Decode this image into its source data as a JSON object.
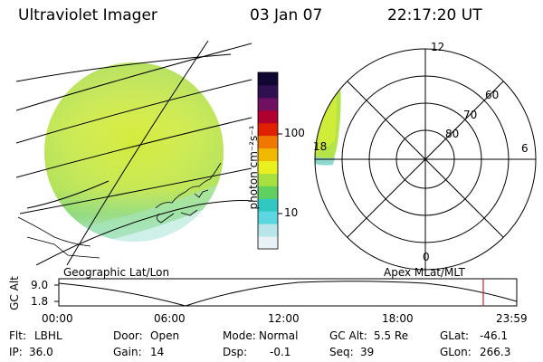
{
  "header": {
    "instrument": "Ultraviolet Imager",
    "date": "03 Jan 07",
    "time": "22:17:20 UT"
  },
  "colorbar": {
    "unit_label": "photon cm⁻²s⁻¹",
    "ticks": [
      "100",
      "10"
    ],
    "colors": [
      "#e8f2f6",
      "#b8e4ea",
      "#5cd6e0",
      "#30c8c0",
      "#60d060",
      "#a8e040",
      "#e8f020",
      "#f0b800",
      "#f07800",
      "#e02000",
      "#b00030",
      "#701060",
      "#301050",
      "#100830"
    ]
  },
  "geo_map": {
    "label": "Geographic Lat/Lon"
  },
  "polar_plot": {
    "label": "Apex MLat/MLT",
    "lat_labels": [
      "60",
      "70",
      "80"
    ],
    "mlt_labels": {
      "top": "12",
      "right": "6",
      "bottom": "0",
      "left": "18"
    }
  },
  "altitude_plot": {
    "axis_label": "GC Alt",
    "y_ticks": [
      "9.0",
      "1.8"
    ],
    "x_ticks": [
      "00:00",
      "06:00",
      "12:00",
      "18:00",
      "23:59"
    ],
    "current_marker_color": "#cc2222"
  },
  "status": {
    "row1": [
      {
        "key": "Flt:",
        "value": "LBHL"
      },
      {
        "key": "Door:",
        "value": "Open"
      },
      {
        "key": "Mode:",
        "value": "Normal"
      },
      {
        "key": "GC Alt:",
        "value": "5.5 Re"
      },
      {
        "key": "GLat:",
        "value": "-46.1"
      }
    ],
    "row2": [
      {
        "key": "IP:",
        "value": "36.0"
      },
      {
        "key": "Gain:",
        "value": "14"
      },
      {
        "key": "Dsp:",
        "value": "-0.1"
      },
      {
        "key": "Seq:",
        "value": "39"
      },
      {
        "key": "GLon:",
        "value": "266.3"
      }
    ]
  }
}
